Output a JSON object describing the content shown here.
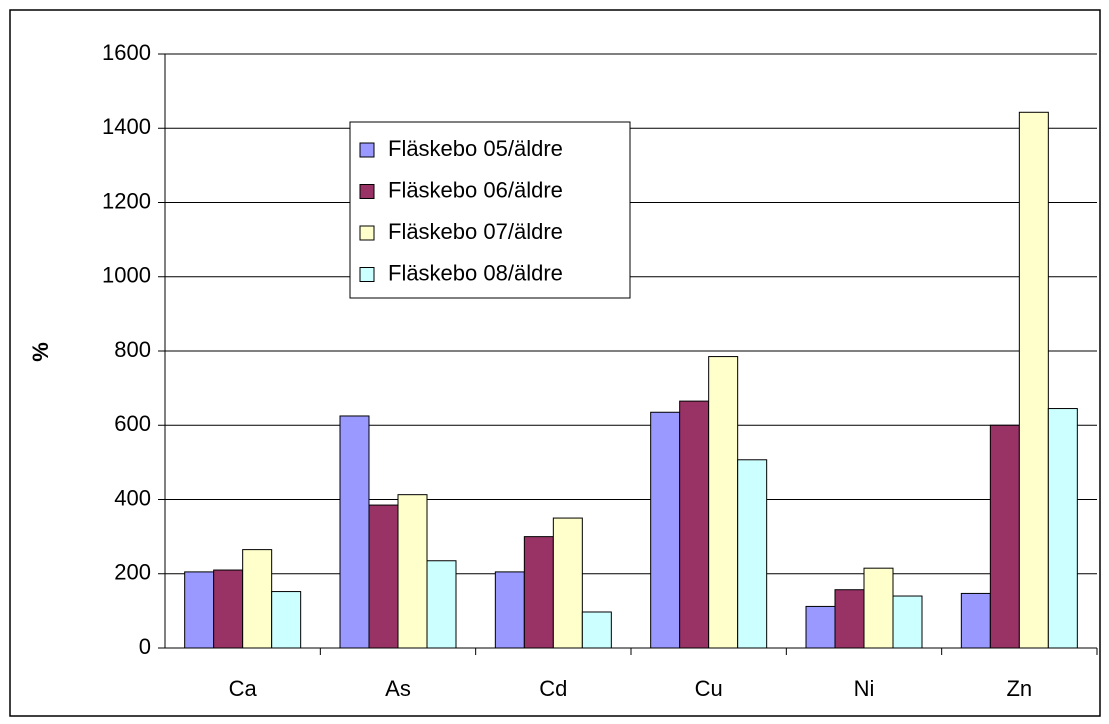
{
  "chart_data": {
    "type": "bar",
    "y_label": "%",
    "categories": [
      "Ca",
      "As",
      "Cd",
      "Cu",
      "Ni",
      "Zn"
    ],
    "series": [
      {
        "name": "Fläskebo 05/äldre",
        "color": "#9999ff",
        "values": [
          205,
          625,
          205,
          635,
          112,
          147
        ]
      },
      {
        "name": "Fläskebo 06/äldre",
        "color": "#993366",
        "values": [
          210,
          385,
          300,
          665,
          157,
          600
        ]
      },
      {
        "name": "Fläskebo 07/äldre",
        "color": "#ffffcc",
        "values": [
          265,
          413,
          350,
          785,
          215,
          1443
        ]
      },
      {
        "name": "Fläskebo 08/äldre",
        "color": "#ccffff",
        "values": [
          152,
          235,
          97,
          507,
          140,
          645
        ]
      }
    ],
    "ylim": [
      0,
      1600
    ],
    "yticks": [
      0,
      200,
      400,
      600,
      800,
      1000,
      1200,
      1400,
      1600
    ],
    "grid": true
  }
}
